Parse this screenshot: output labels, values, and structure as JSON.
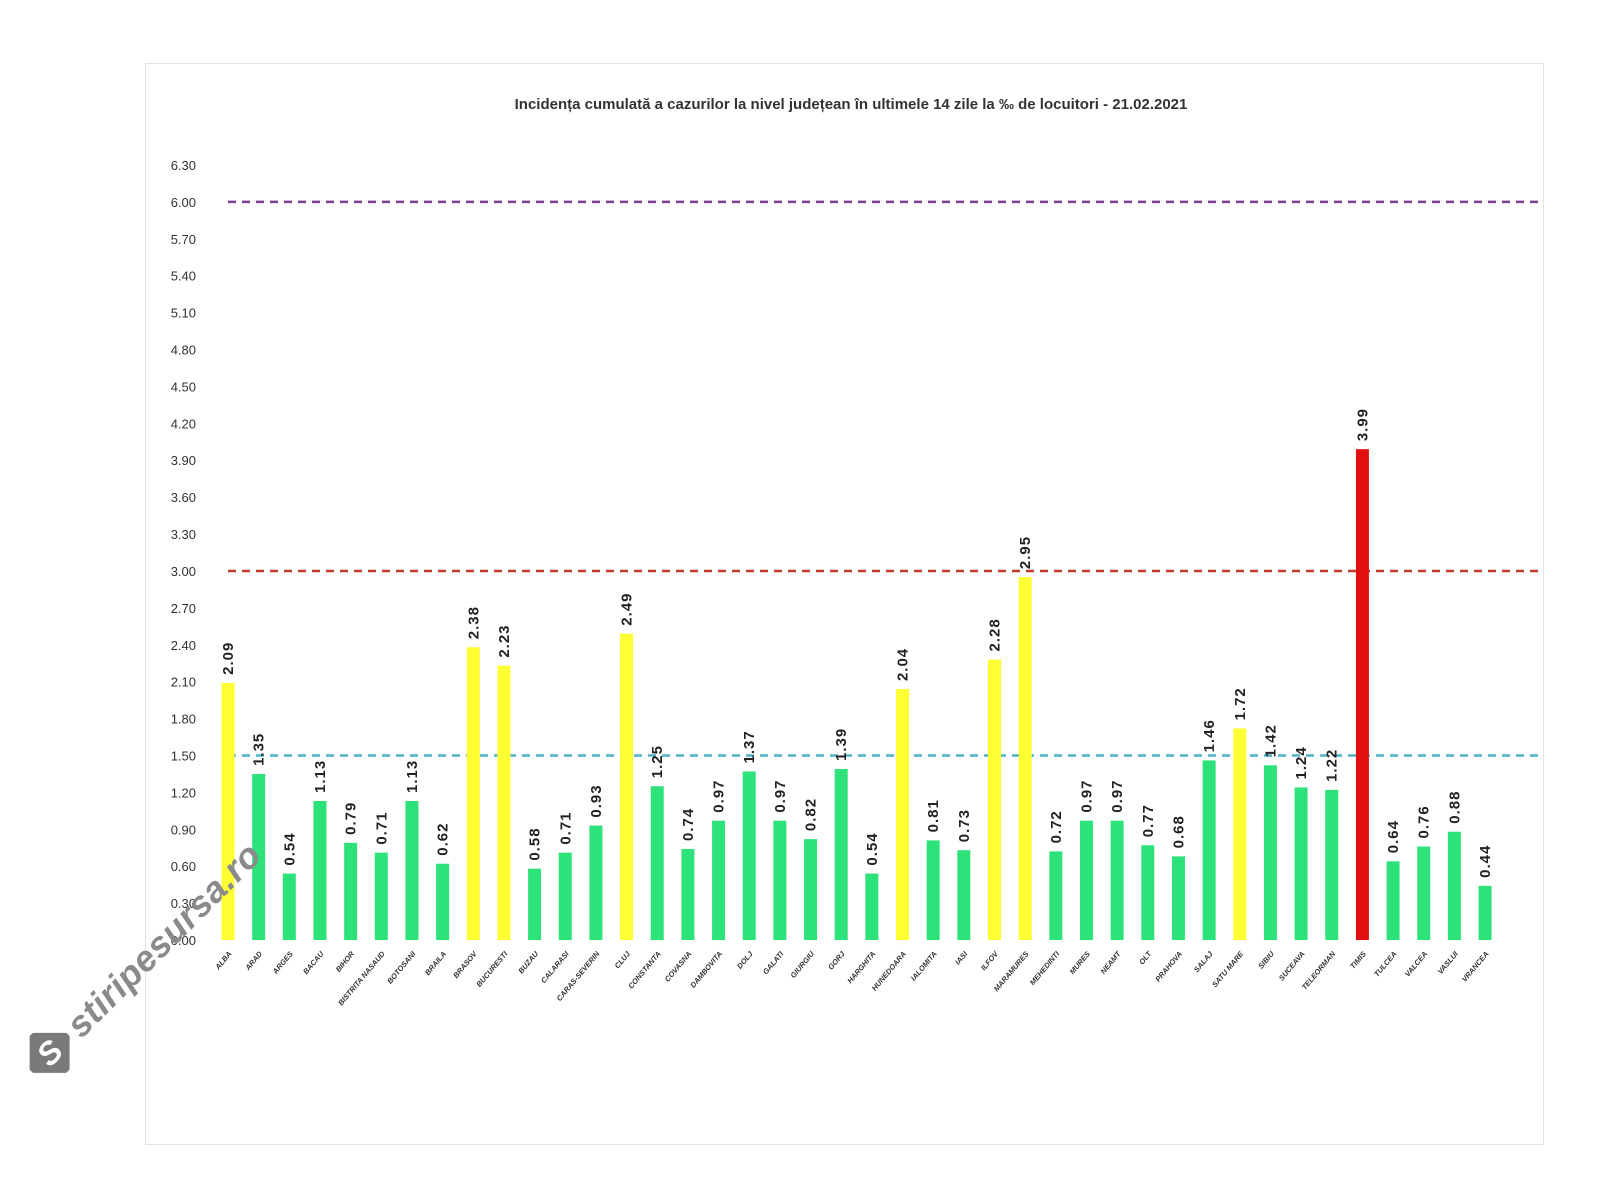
{
  "chart_data": {
    "type": "bar",
    "title": "Incidența cumulată a cazurilor la nivel județean în ultimele 14 zile la ‰ de locuitori - 21.02.2021",
    "xlabel": "",
    "ylabel": "",
    "ylim": [
      0,
      6.3
    ],
    "yticks": [
      "0.00",
      "0.30",
      "0.60",
      "0.90",
      "1.20",
      "1.50",
      "1.80",
      "2.10",
      "2.40",
      "2.70",
      "3.00",
      "3.30",
      "3.60",
      "3.90",
      "4.20",
      "4.50",
      "4.80",
      "5.10",
      "5.40",
      "5.70",
      "6.00",
      "6.30"
    ],
    "grid": false,
    "categories": [
      "ALBA",
      "ARAD",
      "ARGES",
      "BACAU",
      "BIHOR",
      "BISTRITA NASAUD",
      "BOTOSANI",
      "BRAILA",
      "BRASOV",
      "BUCURESTI",
      "BUZAU",
      "CALARASI",
      "CARAS-SEVERIN",
      "CLUJ",
      "CONSTANTA",
      "COVASNA",
      "DAMBOVITA",
      "DOLJ",
      "GALATI",
      "GIURGIU",
      "GORJ",
      "HARGHITA",
      "HUNEDOARA",
      "IALOMITA",
      "IASI",
      "ILFOV",
      "MARAMURES",
      "MEHEDINTI",
      "MURES",
      "NEAMT",
      "OLT",
      "PRAHOVA",
      "SALAJ",
      "SATU MARE",
      "SIBIU",
      "SUCEAVA",
      "TELEORMAN",
      "TIMIS",
      "TULCEA",
      "VALCEA",
      "VASLUI",
      "VRANCEA"
    ],
    "values": [
      2.09,
      1.35,
      0.54,
      1.13,
      0.79,
      0.71,
      1.13,
      0.62,
      2.38,
      2.23,
      0.58,
      0.71,
      0.93,
      2.49,
      1.25,
      0.74,
      0.97,
      1.37,
      0.97,
      0.82,
      1.39,
      0.54,
      2.04,
      0.81,
      0.73,
      2.28,
      2.95,
      0.72,
      0.97,
      0.97,
      0.77,
      0.68,
      1.46,
      1.72,
      1.42,
      1.24,
      1.22,
      3.99,
      0.64,
      0.76,
      0.88,
      0.44
    ],
    "value_labels": [
      "2.09",
      "1.35",
      "0.54",
      "1.13",
      "0.79",
      "0.71",
      "1.13",
      "0.62",
      "2.38",
      "2.23",
      "0.58",
      "0.71",
      "0.93",
      "2.49",
      "1.25",
      "0.74",
      "0.97",
      "1.37",
      "0.97",
      "0.82",
      "1.39",
      "0.54",
      "2.04",
      "0.81",
      "0.73",
      "2.28",
      "2.95",
      "0.72",
      "0.97",
      "0.97",
      "0.77",
      "0.68",
      "1.46",
      "1.72",
      "1.42",
      "1.24",
      "1.22",
      "3.99",
      "0.64",
      "0.76",
      "0.88",
      "0.44"
    ],
    "reference_lines": [
      {
        "value": 1.5,
        "color": "#4fb3c6"
      },
      {
        "value": 3.0,
        "color": "#c0392b"
      },
      {
        "value": 6.0,
        "color": "#7d3c98"
      }
    ],
    "color_rules": {
      "low": "#2ee27a",
      "medium": "#ffff33",
      "high": "#e01010"
    }
  },
  "watermark": {
    "text": "stiripesursa.ro",
    "icon": "s-logo-icon"
  }
}
